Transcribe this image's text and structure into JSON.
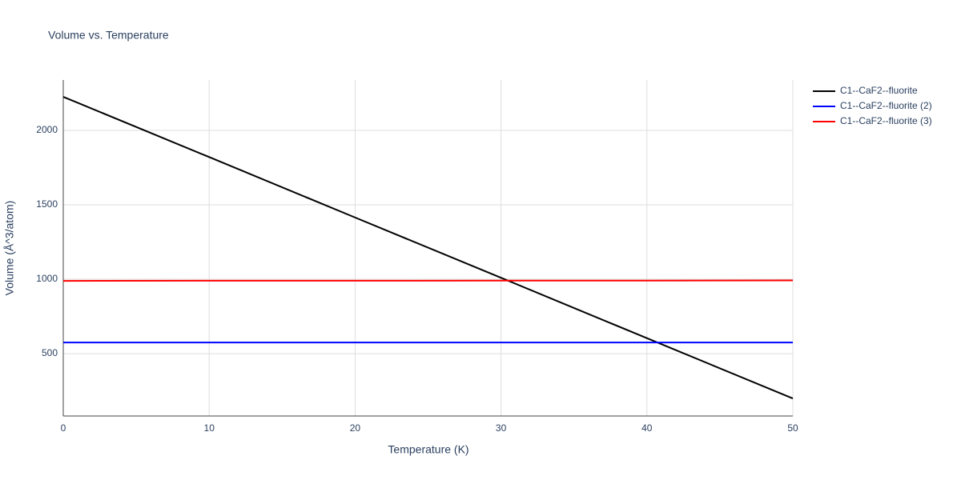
{
  "chart_data": {
    "type": "line",
    "title": "Volume vs. Temperature",
    "x_label": "Temperature (K)",
    "y_label": "Volume (Å^3/atom)",
    "x": [
      0,
      10,
      20,
      30,
      40,
      50
    ],
    "series": [
      {
        "name": "C1--CaF2--fluorite",
        "color": "#000000",
        "values": [
          2226,
          1821,
          1415,
          1010,
          604,
          199
        ]
      },
      {
        "name": "C1--CaF2--fluorite (2)",
        "color": "#0000ff",
        "values": [
          575,
          575,
          575,
          575,
          575,
          575
        ]
      },
      {
        "name": "C1--CaF2--fluorite (3)",
        "color": "#ff0000",
        "values": [
          989,
          990,
          990,
          991,
          991,
          992
        ]
      }
    ],
    "xlim": [
      0,
      50
    ],
    "xticks": [
      0,
      10,
      20,
      30,
      40,
      50
    ],
    "ylim": [
      81,
      2339
    ],
    "yticks": [
      500,
      1000,
      1500,
      2000
    ],
    "grid": true,
    "legend": "right"
  }
}
